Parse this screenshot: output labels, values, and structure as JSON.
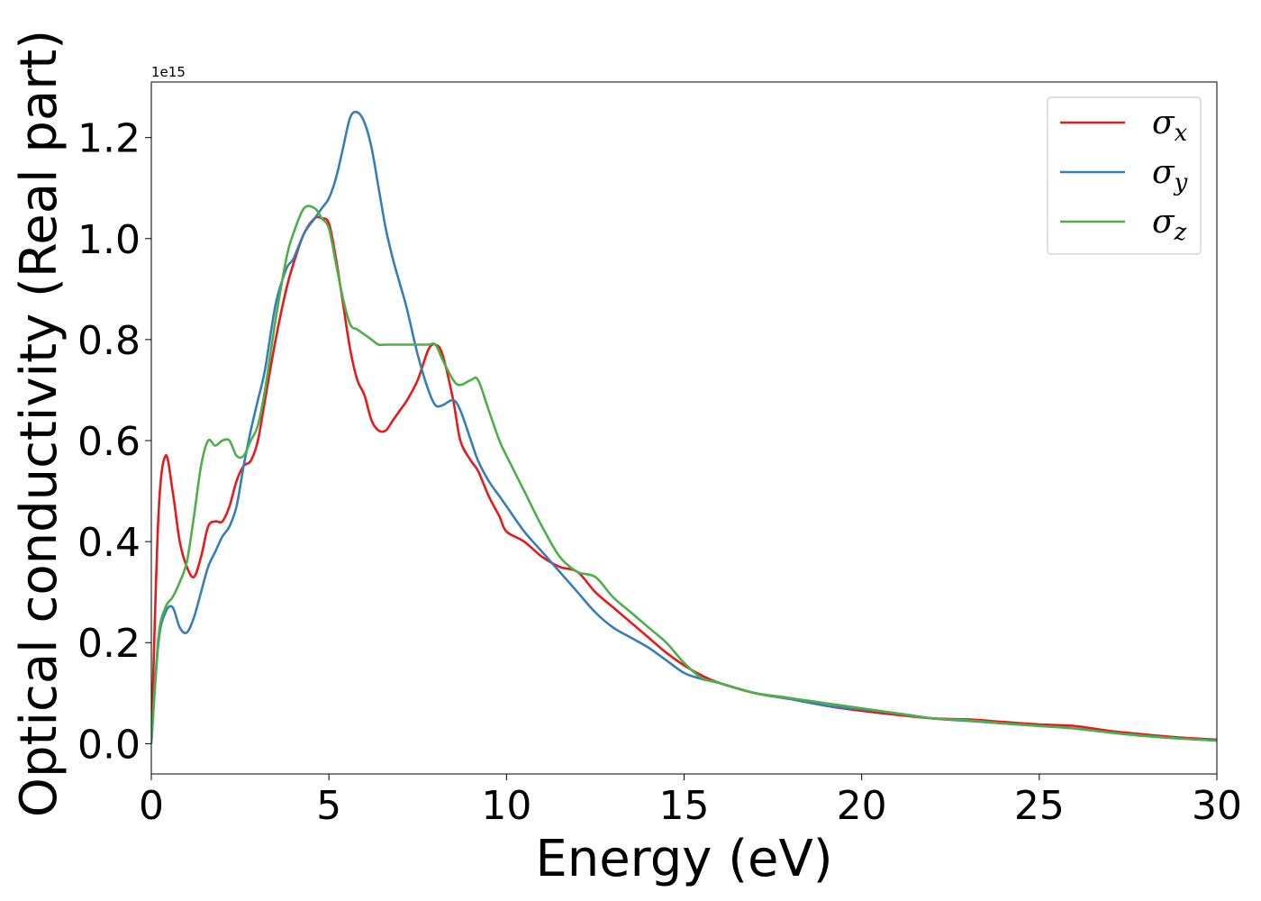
{
  "chart_data": {
    "type": "line",
    "title": "",
    "xlabel": "Energy (eV)",
    "ylabel": "Optical conductivity (Real part)",
    "y_offset_text": "1e15",
    "xlim": [
      0,
      30
    ],
    "ylim": [
      -0.06,
      1.31
    ],
    "xticks": [
      0,
      5,
      10,
      15,
      20,
      25,
      30
    ],
    "yticks": [
      0.0,
      0.2,
      0.4,
      0.6,
      0.8,
      1.0,
      1.2
    ],
    "grid": false,
    "legend_placement": "top-right",
    "x": [
      0,
      0.2,
      0.4,
      0.6,
      0.8,
      1.0,
      1.2,
      1.4,
      1.6,
      1.8,
      2.0,
      2.2,
      2.4,
      2.6,
      2.8,
      3.0,
      3.2,
      3.5,
      3.8,
      4.0,
      4.3,
      4.6,
      4.8,
      5.0,
      5.2,
      5.4,
      5.6,
      5.8,
      6.0,
      6.2,
      6.4,
      6.6,
      6.8,
      7.0,
      7.2,
      7.5,
      7.8,
      8.0,
      8.2,
      8.5,
      8.7,
      9.0,
      9.2,
      9.5,
      9.8,
      10.0,
      10.5,
      11.0,
      11.5,
      12.0,
      12.5,
      13.0,
      13.5,
      14.0,
      14.5,
      15.0,
      15.5,
      16.0,
      17.0,
      18.0,
      19.0,
      20.0,
      21.0,
      22.0,
      23.0,
      24.0,
      25.0,
      26.0,
      27.0,
      28.0,
      29.0,
      30.0
    ],
    "series": [
      {
        "name": "σx",
        "label_base": "σ",
        "label_sub": "x",
        "color": "#e41a1c",
        "values": [
          0.0,
          0.45,
          0.57,
          0.5,
          0.4,
          0.35,
          0.33,
          0.37,
          0.43,
          0.44,
          0.44,
          0.47,
          0.52,
          0.55,
          0.56,
          0.6,
          0.68,
          0.8,
          0.9,
          0.95,
          1.01,
          1.04,
          1.04,
          1.03,
          0.96,
          0.87,
          0.78,
          0.72,
          0.69,
          0.64,
          0.62,
          0.62,
          0.64,
          0.66,
          0.68,
          0.72,
          0.78,
          0.79,
          0.77,
          0.68,
          0.6,
          0.56,
          0.54,
          0.49,
          0.45,
          0.42,
          0.4,
          0.37,
          0.35,
          0.34,
          0.3,
          0.27,
          0.24,
          0.21,
          0.18,
          0.155,
          0.135,
          0.12,
          0.1,
          0.09,
          0.075,
          0.065,
          0.057,
          0.05,
          0.048,
          0.043,
          0.038,
          0.035,
          0.025,
          0.018,
          0.012,
          0.008
        ]
      },
      {
        "name": "σy",
        "label_base": "σ",
        "label_sub": "y",
        "color": "#377eb8",
        "values": [
          0.0,
          0.2,
          0.26,
          0.27,
          0.23,
          0.22,
          0.25,
          0.3,
          0.35,
          0.38,
          0.41,
          0.43,
          0.47,
          0.55,
          0.62,
          0.68,
          0.74,
          0.87,
          0.94,
          0.96,
          1.01,
          1.04,
          1.06,
          1.08,
          1.12,
          1.18,
          1.24,
          1.25,
          1.23,
          1.18,
          1.1,
          1.02,
          0.96,
          0.91,
          0.86,
          0.77,
          0.7,
          0.67,
          0.67,
          0.68,
          0.66,
          0.6,
          0.56,
          0.52,
          0.49,
          0.47,
          0.42,
          0.38,
          0.34,
          0.3,
          0.26,
          0.23,
          0.21,
          0.19,
          0.165,
          0.14,
          0.128,
          0.12,
          0.1,
          0.088,
          0.075,
          0.068,
          0.06,
          0.05,
          0.045,
          0.04,
          0.035,
          0.03,
          0.022,
          0.015,
          0.01,
          0.006
        ]
      },
      {
        "name": "σz",
        "label_base": "σ",
        "label_sub": "z",
        "color": "#4daf4a",
        "values": [
          0.0,
          0.21,
          0.27,
          0.29,
          0.32,
          0.36,
          0.45,
          0.55,
          0.6,
          0.59,
          0.6,
          0.6,
          0.57,
          0.57,
          0.6,
          0.63,
          0.7,
          0.84,
          0.96,
          1.01,
          1.06,
          1.06,
          1.04,
          1.02,
          0.95,
          0.88,
          0.83,
          0.82,
          0.81,
          0.8,
          0.79,
          0.79,
          0.79,
          0.79,
          0.79,
          0.79,
          0.79,
          0.79,
          0.76,
          0.72,
          0.71,
          0.72,
          0.72,
          0.66,
          0.6,
          0.57,
          0.5,
          0.43,
          0.37,
          0.34,
          0.33,
          0.29,
          0.26,
          0.23,
          0.2,
          0.16,
          0.13,
          0.12,
          0.1,
          0.09,
          0.08,
          0.07,
          0.06,
          0.05,
          0.046,
          0.04,
          0.035,
          0.03,
          0.022,
          0.015,
          0.01,
          0.006
        ]
      }
    ]
  }
}
